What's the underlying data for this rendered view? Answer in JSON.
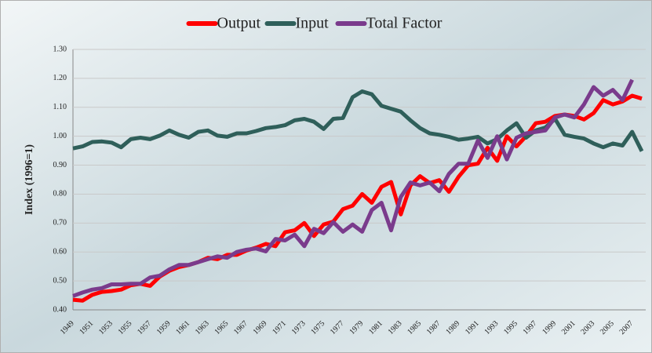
{
  "chart_data": {
    "type": "line",
    "y_label": "Index (1996=1)",
    "categories": [
      "1949",
      null,
      "1951",
      null,
      "1953",
      null,
      "1955",
      null,
      "1957",
      null,
      "1959",
      null,
      "1961",
      null,
      "1963",
      null,
      "1965",
      null,
      "1967",
      null,
      "1969",
      null,
      "1971",
      null,
      "1973",
      null,
      "1975",
      null,
      "1977",
      null,
      "1979",
      null,
      "1981",
      null,
      "1983",
      null,
      "1985",
      null,
      "1987",
      null,
      "1989",
      null,
      "1991",
      null,
      "1993",
      null,
      "1995",
      null,
      "1997",
      null,
      "1999",
      null,
      "2001",
      null,
      "2003",
      null,
      "2005",
      null,
      "2007",
      null
    ],
    "series": [
      {
        "name": "Output",
        "color": "#ff0000",
        "values": [
          0.435,
          0.432,
          0.452,
          0.462,
          0.465,
          0.47,
          0.485,
          0.49,
          0.483,
          0.515,
          0.535,
          0.548,
          0.555,
          0.565,
          0.58,
          0.575,
          0.59,
          0.59,
          0.605,
          0.615,
          0.628,
          0.62,
          0.668,
          0.675,
          0.7,
          0.655,
          0.695,
          0.705,
          0.748,
          0.76,
          0.8,
          0.77,
          0.825,
          0.842,
          0.73,
          0.83,
          0.862,
          0.838,
          0.848,
          0.808,
          0.86,
          0.9,
          0.905,
          0.96,
          0.915,
          1.0,
          0.965,
          1.0,
          1.045,
          1.05,
          1.07,
          1.075,
          1.07,
          1.058,
          1.08,
          1.125,
          1.11,
          1.12,
          1.14,
          1.13
        ]
      },
      {
        "name": "Input",
        "color": "#2f5f5a",
        "values": [
          0.958,
          0.965,
          0.98,
          0.982,
          0.978,
          0.962,
          0.99,
          0.995,
          0.99,
          1.002,
          1.02,
          1.005,
          0.995,
          1.015,
          1.02,
          1.002,
          0.998,
          1.01,
          1.01,
          1.018,
          1.028,
          1.032,
          1.038,
          1.055,
          1.06,
          1.05,
          1.025,
          1.06,
          1.063,
          1.135,
          1.155,
          1.145,
          1.105,
          1.095,
          1.085,
          1.055,
          1.028,
          1.01,
          1.005,
          0.998,
          0.988,
          0.992,
          0.998,
          0.975,
          0.99,
          1.02,
          1.045,
          0.995,
          1.02,
          1.03,
          1.06,
          1.005,
          0.998,
          0.992,
          0.975,
          0.962,
          0.975,
          0.968,
          1.015,
          0.948
        ]
      },
      {
        "name": "Total Factor",
        "color": "#7a3b8c",
        "values": [
          0.448,
          0.46,
          0.47,
          0.475,
          0.488,
          0.488,
          0.49,
          0.49,
          0.512,
          0.518,
          0.54,
          0.555,
          0.555,
          0.565,
          0.575,
          0.585,
          0.58,
          0.6,
          0.608,
          0.612,
          0.602,
          0.645,
          0.64,
          0.66,
          0.62,
          0.68,
          0.665,
          0.703,
          0.67,
          0.695,
          0.67,
          0.745,
          0.77,
          0.675,
          0.79,
          0.84,
          0.83,
          0.84,
          0.81,
          0.87,
          0.905,
          0.905,
          0.985,
          0.925,
          1.0,
          0.92,
          0.995,
          1.01,
          1.015,
          1.02,
          1.065,
          1.075,
          1.065,
          1.11,
          1.17,
          1.14,
          1.16,
          1.125,
          1.195,
          null
        ]
      }
    ],
    "ylim": [
      0.4,
      1.3
    ],
    "yticks": [
      {
        "value": 0.4,
        "label": "0.40"
      },
      {
        "value": 0.5,
        "label": "0.50"
      },
      {
        "value": 0.6,
        "label": "0.60"
      },
      {
        "value": 0.7,
        "label": "0.70"
      },
      {
        "value": 0.8,
        "label": "0.80"
      },
      {
        "value": 0.9,
        "label": "0.90"
      },
      {
        "value": 1.0,
        "label": "1.00"
      },
      {
        "value": 1.1,
        "label": "1.10"
      },
      {
        "value": 1.2,
        "label": "1.20"
      },
      {
        "value": 1.3,
        "label": "1.30"
      }
    ],
    "grid": true,
    "legend": "top"
  }
}
